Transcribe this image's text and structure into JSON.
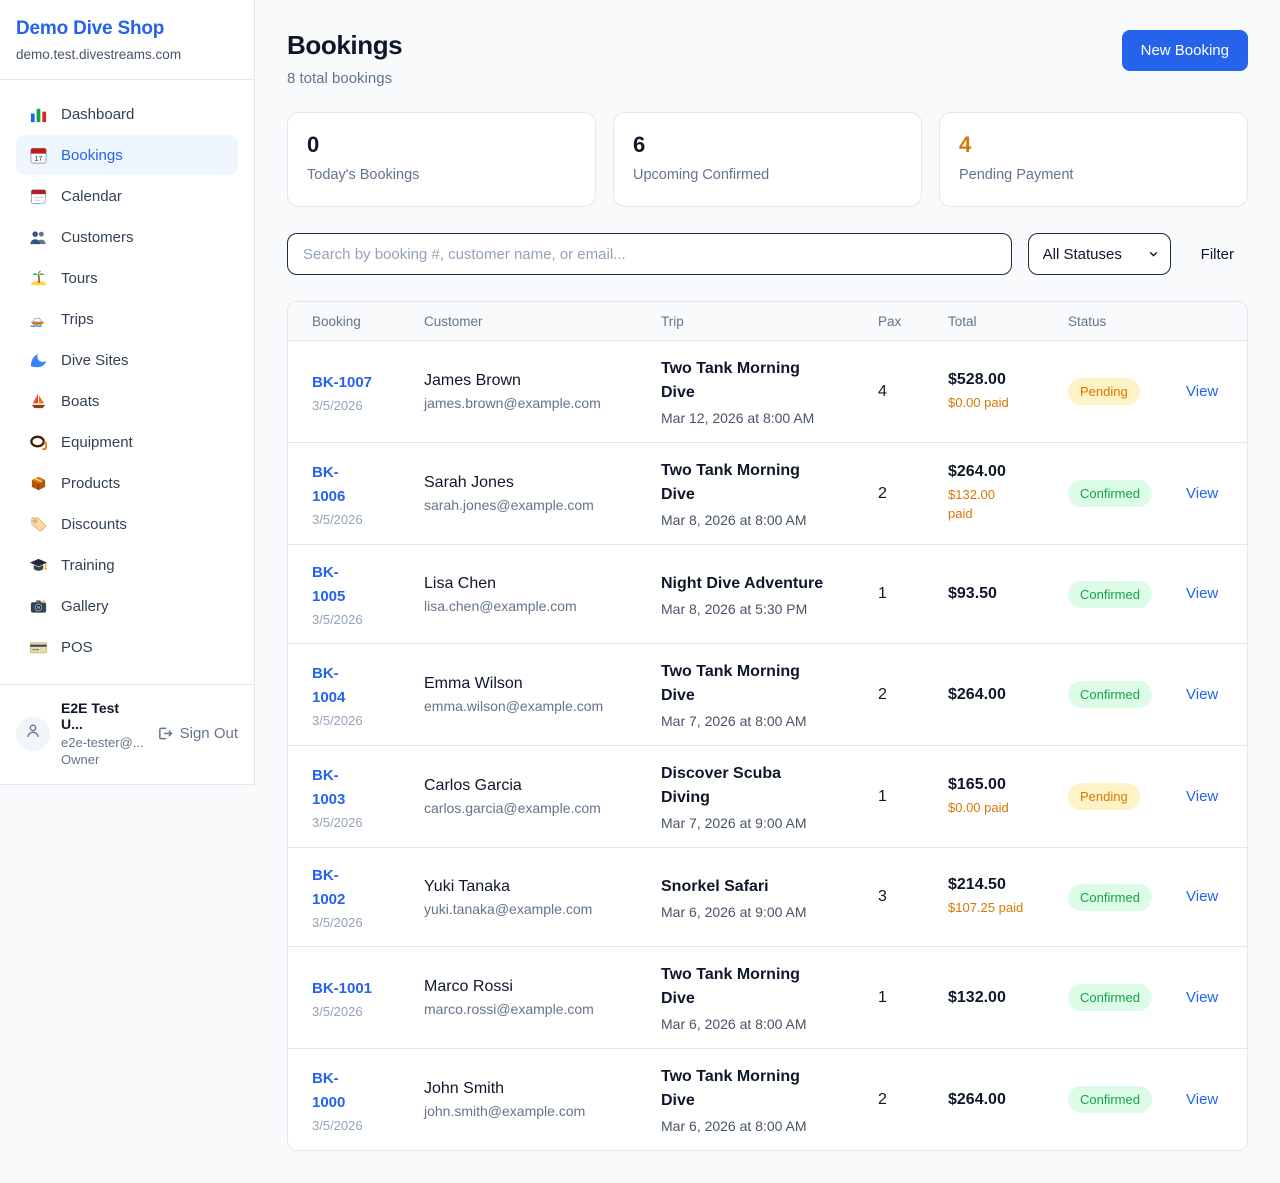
{
  "colors": {
    "accent": "#2563eb",
    "pending": "#d97706",
    "confirmed": "#16a34a"
  },
  "sidebar": {
    "brand": "Demo Dive Shop",
    "domain": "demo.test.divestreams.com",
    "items": [
      {
        "name": "dashboard",
        "icon": "bar-chart-icon",
        "label": "Dashboard",
        "active": false
      },
      {
        "name": "bookings",
        "icon": "booking-calendar-icon",
        "label": "Bookings",
        "active": true
      },
      {
        "name": "calendar",
        "icon": "calendar-icon",
        "label": "Calendar",
        "active": false
      },
      {
        "name": "customers",
        "icon": "users-icon",
        "label": "Customers",
        "active": false
      },
      {
        "name": "tours",
        "icon": "island-icon",
        "label": "Tours",
        "active": false
      },
      {
        "name": "trips",
        "icon": "speedboat-icon",
        "label": "Trips",
        "active": false
      },
      {
        "name": "dive-sites",
        "icon": "wave-icon",
        "label": "Dive Sites",
        "active": false
      },
      {
        "name": "boats",
        "icon": "sailboat-icon",
        "label": "Boats",
        "active": false
      },
      {
        "name": "equipment",
        "icon": "diving-mask-icon",
        "label": "Equipment",
        "active": false
      },
      {
        "name": "products",
        "icon": "package-icon",
        "label": "Products",
        "active": false
      },
      {
        "name": "discounts",
        "icon": "tag-icon",
        "label": "Discounts",
        "active": false
      },
      {
        "name": "training",
        "icon": "graduation-cap-icon",
        "label": "Training",
        "active": false
      },
      {
        "name": "gallery",
        "icon": "camera-icon",
        "label": "Gallery",
        "active": false
      },
      {
        "name": "pos",
        "icon": "credit-card-icon",
        "label": "POS",
        "active": false
      }
    ],
    "user": {
      "name": "E2E Test U...",
      "email": "e2e-tester@...",
      "role": "Owner",
      "sign_out_label": "Sign Out"
    }
  },
  "header": {
    "title": "Bookings",
    "subtitle": "8 total bookings",
    "new_booking_label": "New Booking"
  },
  "stats": [
    {
      "value": "0",
      "label": "Today's Bookings",
      "warn": false
    },
    {
      "value": "6",
      "label": "Upcoming Confirmed",
      "warn": false
    },
    {
      "value": "4",
      "label": "Pending Payment",
      "warn": true
    }
  ],
  "filters": {
    "search_placeholder": "Search by booking #, customer name, or email...",
    "status_selected": "All Statuses",
    "filter_label": "Filter"
  },
  "table": {
    "columns": {
      "booking": "Booking",
      "customer": "Customer",
      "trip": "Trip",
      "pax": "Pax",
      "total": "Total",
      "status": "Status"
    },
    "view_label": "View",
    "rows": [
      {
        "id": "BK-1007",
        "date": "3/5/2026",
        "name": "James Brown",
        "email": "james.brown@example.com",
        "trip": "Two Tank Morning\nDive",
        "trip_date": "Mar 12, 2026 at 8:00 AM",
        "pax": "4",
        "total": "$528.00",
        "paid": "$0.00 paid",
        "status": "Pending"
      },
      {
        "id": "BK-\n1006",
        "date": "3/5/2026",
        "name": "Sarah Jones",
        "email": "sarah.jones@example.com",
        "trip": "Two Tank Morning\nDive",
        "trip_date": "Mar 8, 2026 at 8:00 AM",
        "pax": "2",
        "total": "$264.00",
        "paid": "$132.00\npaid",
        "status": "Confirmed"
      },
      {
        "id": "BK-\n1005",
        "date": "3/5/2026",
        "name": "Lisa Chen",
        "email": "lisa.chen@example.com",
        "trip": "Night Dive Adventure",
        "trip_date": "Mar 8, 2026 at 5:30 PM",
        "pax": "1",
        "total": "$93.50",
        "paid": "",
        "status": "Confirmed"
      },
      {
        "id": "BK-\n1004",
        "date": "3/5/2026",
        "name": "Emma Wilson",
        "email": "emma.wilson@example.com",
        "trip": "Two Tank Morning\nDive",
        "trip_date": "Mar 7, 2026 at 8:00 AM",
        "pax": "2",
        "total": "$264.00",
        "paid": "",
        "status": "Confirmed"
      },
      {
        "id": "BK-\n1003",
        "date": "3/5/2026",
        "name": "Carlos Garcia",
        "email": "carlos.garcia@example.com",
        "trip": "Discover Scuba\nDiving",
        "trip_date": "Mar 7, 2026 at 9:00 AM",
        "pax": "1",
        "total": "$165.00",
        "paid": "$0.00 paid",
        "status": "Pending"
      },
      {
        "id": "BK-\n1002",
        "date": "3/5/2026",
        "name": "Yuki Tanaka",
        "email": "yuki.tanaka@example.com",
        "trip": "Snorkel Safari",
        "trip_date": "Mar 6, 2026 at 9:00 AM",
        "pax": "3",
        "total": "$214.50",
        "paid": "$107.25 paid",
        "status": "Confirmed"
      },
      {
        "id": "BK-1001",
        "date": "3/5/2026",
        "name": "Marco Rossi",
        "email": "marco.rossi@example.com",
        "trip": "Two Tank Morning\nDive",
        "trip_date": "Mar 6, 2026 at 8:00 AM",
        "pax": "1",
        "total": "$132.00",
        "paid": "",
        "status": "Confirmed"
      },
      {
        "id": "BK-\n1000",
        "date": "3/5/2026",
        "name": "John Smith",
        "email": "john.smith@example.com",
        "trip": "Two Tank Morning\nDive",
        "trip_date": "Mar 6, 2026 at 8:00 AM",
        "pax": "2",
        "total": "$264.00",
        "paid": "",
        "status": "Confirmed"
      }
    ]
  }
}
